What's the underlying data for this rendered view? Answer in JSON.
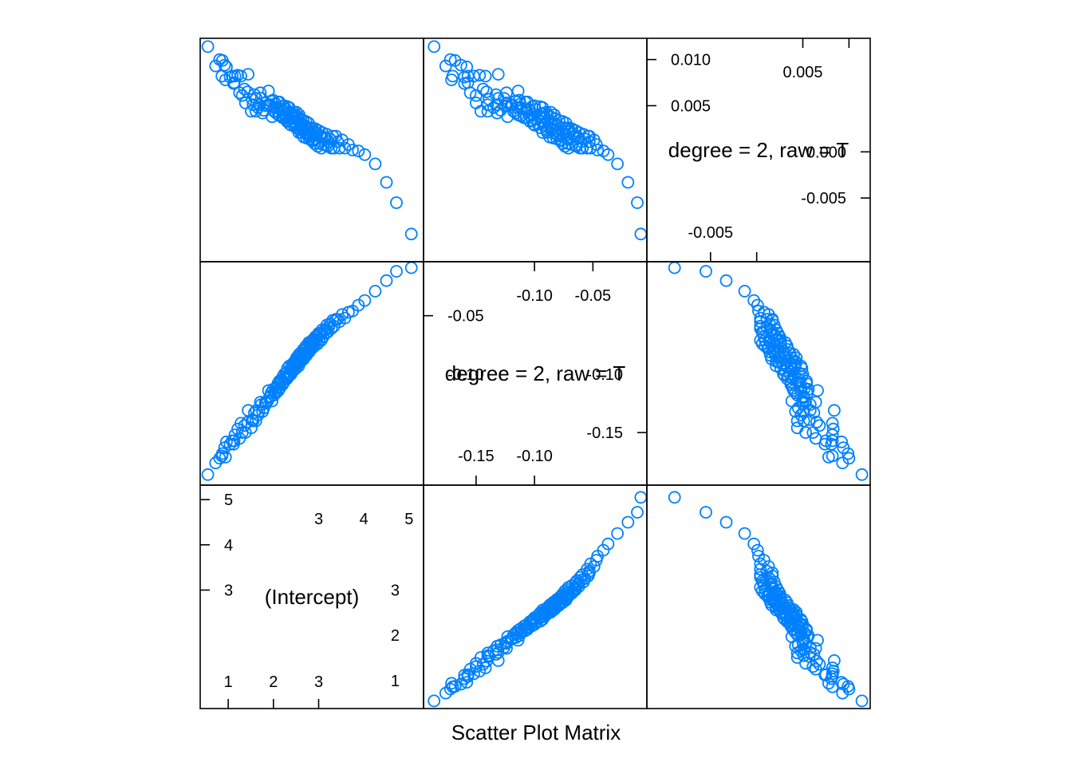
{
  "chart_data": {
    "type": "scatter",
    "title": "Scatter Plot Matrix",
    "point_color": "#0080ff",
    "point_shape": "open-circle",
    "variables": [
      {
        "name": "(Intercept)",
        "range": [
          0.38,
          5.32
        ],
        "ticks_primary": [
          1,
          2,
          3
        ],
        "ticks_secondary": [
          3,
          4,
          5
        ]
      },
      {
        "name": "degree = 2, raw = T",
        "range": [
          -0.195,
          -0.0038
        ],
        "ticks_primary": [
          -0.15,
          -0.1
        ],
        "ticks_secondary": [
          -0.1,
          -0.05
        ],
        "ticks_primary_labels": [
          "-0.15",
          "-0.10"
        ],
        "ticks_secondary_labels": [
          "-0.10",
          "-0.05"
        ],
        "clipped_center_label": "-0.10"
      },
      {
        "name": "degree = 2, raw = T",
        "range": [
          -0.0119,
          0.0123
        ],
        "ticks_primary": [
          -0.005
        ],
        "ticks_secondary": [
          0.005
        ],
        "ticks_primary_labels": [
          "-0.005"
        ],
        "ticks_secondary_labels": [
          "0.005"
        ],
        "y_ticks_primary": [
          -0.005,
          0.0
        ],
        "y_ticks_secondary": [
          0.005,
          0.01
        ],
        "y_ticks_primary_labels": [
          "-0.005",
          "0.000"
        ],
        "y_ticks_secondary_labels": [
          "0.005",
          "0.010"
        ]
      }
    ],
    "observations": {
      "intercept": [
        0.55,
        0.72,
        0.81,
        0.87,
        0.86,
        0.92,
        0.94,
        0.96,
        1.04,
        1.09,
        1.12,
        1.13,
        1.15,
        1.21,
        1.25,
        1.28,
        1.31,
        1.36,
        1.38,
        1.43,
        1.44,
        1.51,
        1.53,
        1.55,
        1.58,
        1.61,
        1.62,
        1.66,
        1.68,
        1.71,
        1.73,
        1.76,
        1.79,
        1.82,
        1.84,
        1.87,
        1.89,
        1.91,
        1.93,
        1.95,
        1.97,
        1.99,
        2.01,
        2.03,
        2.05,
        2.06,
        2.08,
        2.1,
        2.11,
        2.13,
        2.14,
        2.16,
        2.17,
        2.19,
        2.2,
        2.21,
        2.23,
        2.24,
        2.26,
        2.27,
        2.28,
        2.3,
        2.31,
        2.32,
        2.34,
        2.35,
        2.36,
        2.37,
        2.39,
        2.4,
        2.41,
        2.42,
        2.44,
        2.45,
        2.46,
        2.47,
        2.48,
        2.5,
        2.51,
        2.52,
        2.53,
        2.54,
        2.56,
        2.57,
        2.58,
        2.59,
        2.6,
        2.61,
        2.62,
        2.64,
        2.65,
        2.66,
        2.67,
        2.68,
        2.69,
        2.71,
        2.72,
        2.73,
        2.74,
        2.75,
        2.76,
        2.78,
        2.79,
        2.8,
        2.81,
        2.82,
        2.84,
        2.85,
        2.86,
        2.87,
        2.89,
        2.9,
        2.91,
        2.93,
        2.94,
        2.95,
        2.97,
        2.98,
        3.0,
        3.01,
        3.03,
        3.05,
        3.06,
        3.08,
        3.1,
        3.12,
        3.14,
        3.16,
        3.18,
        3.2,
        3.22,
        3.25,
        3.28,
        3.31,
        3.34,
        3.38,
        3.42,
        3.46,
        3.52,
        3.58,
        3.66,
        3.75,
        3.88,
        4.02,
        4.25,
        4.5,
        4.72,
        5.05
      ],
      "deg2_linear": [
        -0.186,
        -0.176,
        -0.172,
        -0.168,
        -0.17,
        -0.163,
        -0.171,
        -0.158,
        -0.16,
        -0.157,
        -0.16,
        -0.157,
        -0.152,
        -0.147,
        -0.155,
        -0.142,
        -0.15,
        -0.144,
        -0.15,
        -0.141,
        -0.131,
        -0.146,
        -0.139,
        -0.14,
        -0.133,
        -0.14,
        -0.131,
        -0.135,
        -0.132,
        -0.124,
        -0.126,
        -0.132,
        -0.129,
        -0.124,
        -0.125,
        -0.123,
        -0.114,
        -0.12,
        -0.119,
        -0.116,
        -0.123,
        -0.113,
        -0.118,
        -0.115,
        -0.112,
        -0.116,
        -0.112,
        -0.108,
        -0.114,
        -0.106,
        -0.112,
        -0.107,
        -0.107,
        -0.105,
        -0.109,
        -0.102,
        -0.107,
        -0.1,
        -0.104,
        -0.102,
        -0.099,
        -0.104,
        -0.095,
        -0.102,
        -0.1,
        -0.093,
        -0.101,
        -0.096,
        -0.1,
        -0.094,
        -0.095,
        -0.092,
        -0.097,
        -0.09,
        -0.094,
        -0.091,
        -0.089,
        -0.095,
        -0.086,
        -0.092,
        -0.089,
        -0.086,
        -0.093,
        -0.083,
        -0.09,
        -0.086,
        -0.082,
        -0.089,
        -0.083,
        -0.086,
        -0.085,
        -0.079,
        -0.087,
        -0.08,
        -0.082,
        -0.083,
        -0.076,
        -0.084,
        -0.078,
        -0.081,
        -0.08,
        -0.073,
        -0.081,
        -0.074,
        -0.078,
        -0.076,
        -0.072,
        -0.078,
        -0.071,
        -0.077,
        -0.073,
        -0.07,
        -0.076,
        -0.068,
        -0.072,
        -0.071,
        -0.067,
        -0.074,
        -0.065,
        -0.071,
        -0.066,
        -0.065,
        -0.071,
        -0.062,
        -0.068,
        -0.063,
        -0.062,
        -0.065,
        -0.058,
        -0.064,
        -0.06,
        -0.057,
        -0.061,
        -0.054,
        -0.059,
        -0.053,
        -0.053,
        -0.055,
        -0.049,
        -0.052,
        -0.047,
        -0.046,
        -0.041,
        -0.037,
        -0.029,
        -0.02,
        -0.012,
        -0.009
      ],
      "deg2_quadratic": [
        0.0114,
        0.0093,
        0.01,
        0.0099,
        0.0082,
        0.0094,
        0.0078,
        0.0092,
        0.0081,
        0.0082,
        0.0074,
        0.0075,
        0.0082,
        0.0083,
        0.0064,
        0.0082,
        0.0061,
        0.0068,
        0.0053,
        0.0065,
        0.0084,
        0.0044,
        0.0057,
        0.0051,
        0.0062,
        0.0044,
        0.0058,
        0.0048,
        0.0051,
        0.0064,
        0.0058,
        0.0042,
        0.0045,
        0.0053,
        0.005,
        0.005,
        0.0066,
        0.0051,
        0.0051,
        0.0055,
        0.0038,
        0.0056,
        0.0044,
        0.0048,
        0.0052,
        0.0042,
        0.0048,
        0.0054,
        0.004,
        0.0054,
        0.0039,
        0.0046,
        0.0045,
        0.0046,
        0.0037,
        0.0049,
        0.0037,
        0.005,
        0.0039,
        0.0041,
        0.0046,
        0.0033,
        0.0049,
        0.0034,
        0.0036,
        0.0048,
        0.003,
        0.0039,
        0.0029,
        0.0041,
        0.0037,
        0.0041,
        0.003,
        0.0043,
        0.0033,
        0.0037,
        0.004,
        0.0026,
        0.0043,
        0.0029,
        0.0034,
        0.0038,
        0.0021,
        0.004,
        0.0024,
        0.003,
        0.0036,
        0.0021,
        0.003,
        0.0024,
        0.0025,
        0.0034,
        0.0016,
        0.0029,
        0.0023,
        0.002,
        0.0033,
        0.0015,
        0.0026,
        0.0019,
        0.0018,
        0.0031,
        0.0014,
        0.0026,
        0.0017,
        0.0019,
        0.0025,
        0.0012,
        0.0026,
        0.0013,
        0.0018,
        0.0022,
        0.0009,
        0.0025,
        0.0014,
        0.0014,
        0.002,
        0.0006,
        0.0023,
        0.0009,
        0.0017,
        0.0017,
        0.0004,
        0.0021,
        0.0008,
        0.0016,
        0.0015,
        0.0007,
        0.0019,
        0.0006,
        0.0011,
        0.0014,
        0.0004,
        0.0017,
        0.0004,
        0.0017,
        0.0011,
        0.0004,
        0.0013,
        0.0004,
        0.0008,
        0.0002,
        0.0001,
        -0.0003,
        -0.0013,
        -0.0033,
        -0.0055,
        -0.0089
      ]
    }
  }
}
